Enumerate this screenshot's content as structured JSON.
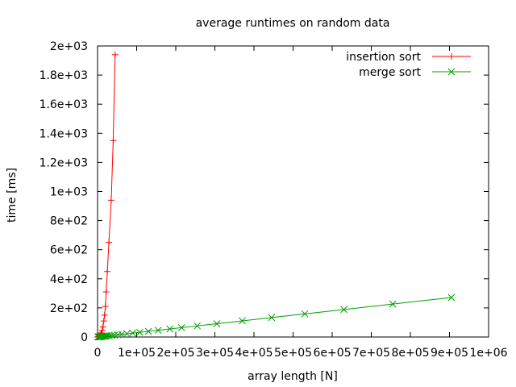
{
  "chart_data": {
    "type": "line",
    "title": "average runtimes on random data",
    "xlabel": "array length [N]",
    "ylabel": "time [ms]",
    "xlim": [
      0,
      1000000
    ],
    "ylim": [
      0,
      2000
    ],
    "grid": false,
    "legend_position": "top-right",
    "x_ticks": [
      {
        "value": 0,
        "label": "0"
      },
      {
        "value": 100000,
        "label": "1e+05"
      },
      {
        "value": 200000,
        "label": "2e+05"
      },
      {
        "value": 300000,
        "label": "3e+05"
      },
      {
        "value": 400000,
        "label": "4e+05"
      },
      {
        "value": 500000,
        "label": "5e+05"
      },
      {
        "value": 600000,
        "label": "6e+05"
      },
      {
        "value": 700000,
        "label": "7e+05"
      },
      {
        "value": 800000,
        "label": "8e+05"
      },
      {
        "value": 900000,
        "label": "9e+05"
      },
      {
        "value": 1000000,
        "label": "1e+06"
      }
    ],
    "y_ticks": [
      {
        "value": 0,
        "label": "0"
      },
      {
        "value": 200,
        "label": "2e+02"
      },
      {
        "value": 400,
        "label": "4e+02"
      },
      {
        "value": 600,
        "label": "6e+02"
      },
      {
        "value": 800,
        "label": "8e+02"
      },
      {
        "value": 1000,
        "label": "1e+03"
      },
      {
        "value": 1200,
        "label": "1.2e+03"
      },
      {
        "value": 1400,
        "label": "1.4e+03"
      },
      {
        "value": 1600,
        "label": "1.6e+03"
      },
      {
        "value": 1800,
        "label": "1.8e+03"
      },
      {
        "value": 2000,
        "label": "2e+03"
      }
    ],
    "series": [
      {
        "name": "insertion sort",
        "color": "#ff0000",
        "marker": "plus",
        "x": [
          100,
          500,
          1000,
          2000,
          3000,
          4000,
          5000,
          6000,
          7000,
          8000,
          9000,
          10000,
          12000,
          14000,
          16000,
          18000,
          20000,
          22000,
          25000,
          29000,
          35000,
          40000,
          45000
        ],
        "y": [
          0,
          0,
          0.5,
          1,
          2,
          3,
          5,
          7,
          10,
          15,
          20,
          28,
          45,
          70,
          110,
          150,
          210,
          310,
          450,
          650,
          940,
          1350,
          1940
        ]
      },
      {
        "name": "merge sort",
        "color": "#00a000",
        "marker": "cross",
        "x": [
          1000,
          2000,
          3000,
          4000,
          5000,
          6000,
          8000,
          10000,
          12000,
          15000,
          18000,
          21000,
          25000,
          30000,
          36000,
          43000,
          52000,
          62000,
          75000,
          90000,
          108000,
          130000,
          155000,
          185000,
          215000,
          255000,
          305000,
          370000,
          445000,
          530000,
          630000,
          755000,
          905000
        ],
        "y": [
          0.3,
          0.6,
          0.9,
          1.2,
          1.5,
          1.8,
          2.4,
          3,
          3.6,
          4.5,
          5.4,
          6.3,
          7.5,
          9,
          10.8,
          12.9,
          15.6,
          18.6,
          22.5,
          27,
          32.4,
          39,
          46.5,
          55.5,
          64.5,
          76.5,
          91.5,
          111,
          133.5,
          159,
          189,
          226.5,
          271.5
        ]
      }
    ]
  }
}
